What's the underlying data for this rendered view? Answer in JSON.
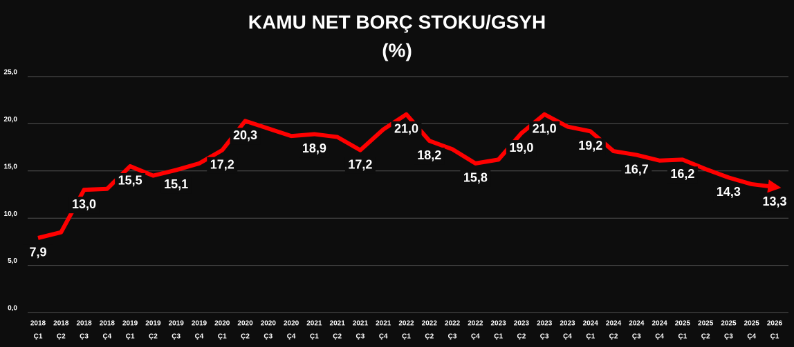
{
  "chart_data": {
    "type": "line",
    "title": "KAMU NET BORÇ STOKU/GSYH",
    "subtitle": "(%)",
    "categories": [
      [
        "2018",
        "Ç1"
      ],
      [
        "2018",
        "Ç2"
      ],
      [
        "2018",
        "Ç3"
      ],
      [
        "2018",
        "Ç4"
      ],
      [
        "2019",
        "Ç1"
      ],
      [
        "2019",
        "Ç2"
      ],
      [
        "2019",
        "Ç3"
      ],
      [
        "2019",
        "Ç4"
      ],
      [
        "2020",
        "Ç1"
      ],
      [
        "2020",
        "Ç2"
      ],
      [
        "2020",
        "Ç3"
      ],
      [
        "2020",
        "Ç4"
      ],
      [
        "2021",
        "Ç1"
      ],
      [
        "2021",
        "Ç2"
      ],
      [
        "2021",
        "Ç3"
      ],
      [
        "2021",
        "Ç4"
      ],
      [
        "2022",
        "Ç1"
      ],
      [
        "2022",
        "Ç2"
      ],
      [
        "2022",
        "Ç3"
      ],
      [
        "2022",
        "Ç4"
      ],
      [
        "2023",
        "Ç1"
      ],
      [
        "2023",
        "Ç2"
      ],
      [
        "2023",
        "Ç3"
      ],
      [
        "2023",
        "Ç4"
      ],
      [
        "2024",
        "Ç1"
      ],
      [
        "2024",
        "Ç2"
      ],
      [
        "2024",
        "Ç3"
      ],
      [
        "2024",
        "Ç4"
      ],
      [
        "2025",
        "Ç1"
      ],
      [
        "2025",
        "Ç2"
      ],
      [
        "2025",
        "Ç3"
      ],
      [
        "2025",
        "Ç4"
      ],
      [
        "2026",
        "Ç1"
      ]
    ],
    "values": [
      7.9,
      8.5,
      13.0,
      13.1,
      15.5,
      14.5,
      15.1,
      15.8,
      17.2,
      20.3,
      19.5,
      18.7,
      18.9,
      18.6,
      17.2,
      19.4,
      21.0,
      18.2,
      17.3,
      15.8,
      16.2,
      19.0,
      21.0,
      19.7,
      19.2,
      17.1,
      16.7,
      16.1,
      16.2,
      15.2,
      14.3,
      13.6,
      13.3
    ],
    "value_labels": [
      "7,9",
      null,
      "13,0",
      null,
      "15,5",
      null,
      "15,1",
      null,
      "17,2",
      "20,3",
      null,
      null,
      "18,9",
      null,
      "17,2",
      null,
      "21,0",
      "18,2",
      null,
      "15,8",
      null,
      "19,0",
      "21,0",
      null,
      "19,2",
      null,
      "16,7",
      null,
      "16,2",
      null,
      "14,3",
      null,
      "13,3"
    ],
    "color": "#ff0000",
    "ylim": [
      0,
      25
    ],
    "yticks": [
      {
        "value": 0,
        "label": "0,0"
      },
      {
        "value": 5,
        "label": "5,0"
      },
      {
        "value": 10,
        "label": "10,0"
      },
      {
        "value": 15,
        "label": "15,0"
      },
      {
        "value": 20,
        "label": "20,0"
      },
      {
        "value": 25,
        "label": "25,0"
      }
    ],
    "grid": true
  }
}
